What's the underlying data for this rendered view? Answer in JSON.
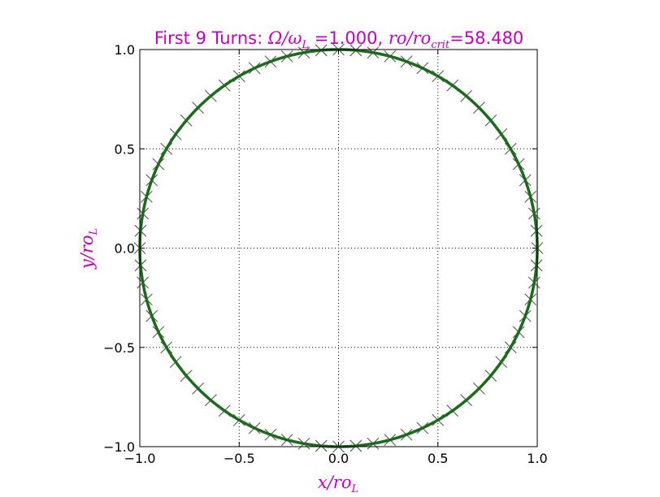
{
  "chart_data": {
    "type": "line",
    "title": {
      "prefix": "First 9 Turns: ",
      "omega_ratio_expr": "Ω/ω",
      "omega_ratio_sub": "L",
      "omega_ratio_eq": " =",
      "omega_ratio_value": "1.000",
      "separator": ", ",
      "ro_ratio_expr": "ro/ro",
      "ro_ratio_sub": "crit",
      "ro_ratio_eq": "=",
      "ro_ratio_value": "58.480"
    },
    "xlabel": {
      "main": "x/ro",
      "sub": "L"
    },
    "ylabel": {
      "main": "y/ro",
      "sub": "L"
    },
    "xlim": [
      -1.0,
      1.0
    ],
    "ylim": [
      -1.0,
      1.0
    ],
    "xticks": [
      -1.0,
      -0.5,
      0.0,
      0.5,
      1.0
    ],
    "yticks": [
      -1.0,
      -0.5,
      0.0,
      0.5,
      1.0
    ],
    "xtick_labels": [
      "−1.0",
      "−0.5",
      "0.0",
      "0.5",
      "1.0"
    ],
    "ytick_labels": [
      "−1.0",
      "−0.5",
      "0.0",
      "0.5",
      "1.0"
    ],
    "grid": true,
    "series": [
      {
        "kind": "trajectory",
        "shape": "unit circle",
        "center": [
          0.0,
          0.0
        ],
        "radius": 1.0,
        "turns": 9,
        "color": "#1e6b1e"
      },
      {
        "kind": "markers",
        "marker": "x",
        "color": "#555555",
        "count": 72,
        "angles_deg_start": 0,
        "angles_deg_step": 5,
        "radius": 1.0
      }
    ]
  }
}
